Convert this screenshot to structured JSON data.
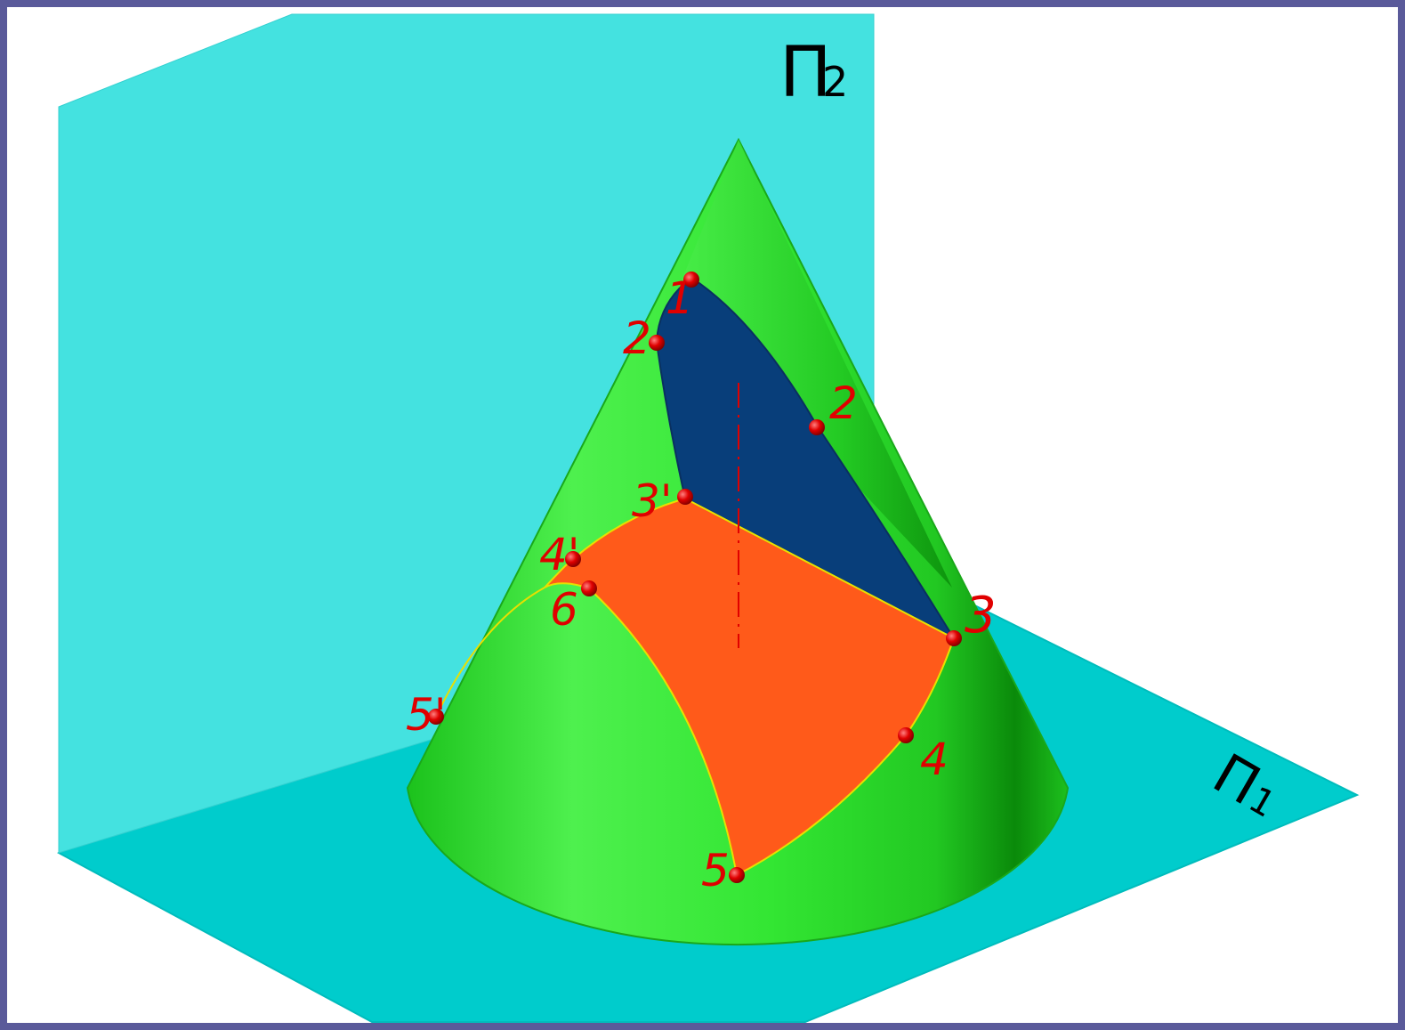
{
  "planes": {
    "frontal": {
      "label": "Π",
      "sub": "2"
    },
    "horizontal": {
      "label": "Π",
      "sub": "1"
    }
  },
  "points": [
    {
      "id": "p1",
      "label": "1"
    },
    {
      "id": "p2a",
      "label": "2"
    },
    {
      "id": "p2",
      "label": "2"
    },
    {
      "id": "p3a",
      "label": "3'"
    },
    {
      "id": "p3",
      "label": "3"
    },
    {
      "id": "p4a",
      "label": "4'"
    },
    {
      "id": "p4",
      "label": "4"
    },
    {
      "id": "p5a",
      "label": "5'"
    },
    {
      "id": "p5",
      "label": "5"
    },
    {
      "id": "p6",
      "label": "6"
    }
  ],
  "colors": {
    "plane": "#00cccc",
    "plane_light": "#44e2e0",
    "cone": "#33e633",
    "cone_dark": "#0a9e0a",
    "section_blue": "#083e7a",
    "section_orange": "#ff5a1a",
    "points": "#e00000",
    "background": "#ffffff",
    "frame": "#5a5a9a"
  }
}
